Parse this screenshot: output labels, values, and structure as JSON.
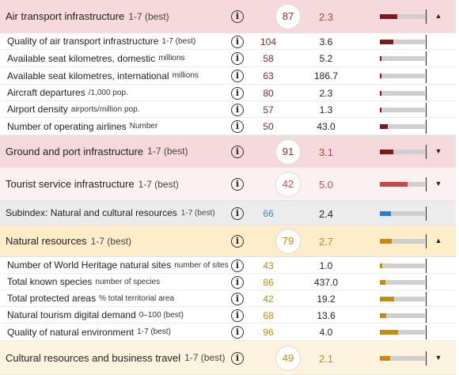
{
  "rows": [
    {
      "kind": "main",
      "label": "Air transport infrastructure",
      "unit": "1-7 (best)",
      "rank": "87",
      "score": "2.3",
      "bar": 0.38,
      "theme": "red",
      "toggle": "up-icon",
      "toggle_glyph": "▲",
      "bg": "#f6d9da",
      "rankColor": "#8b2d2d",
      "scoreColor": "#b0463e"
    },
    {
      "kind": "sub",
      "label": "Quality of air transport infrastructure",
      "unit": "1-7 (best)",
      "rank": "104",
      "score": "3.6",
      "bar": 0.3,
      "theme": "red",
      "bg": "#ffffff",
      "rankColor": "#7a2a2a",
      "scoreColor": "#222"
    },
    {
      "kind": "sub",
      "label": "Available seat kilometres, domestic",
      "unit": "millions",
      "rank": "58",
      "score": "5.2",
      "bar": 0.03,
      "theme": "red",
      "bg": "#ffffff",
      "rankColor": "#7a2a2a",
      "scoreColor": "#222"
    },
    {
      "kind": "sub",
      "label": "Available seat kilometres, international",
      "unit": "millions",
      "rank": "63",
      "score": "186.7",
      "bar": 0.02,
      "theme": "red",
      "bg": "#ffffff",
      "rankColor": "#7a2a2a",
      "scoreColor": "#222"
    },
    {
      "kind": "sub",
      "label": "Aircraft departures",
      "unit": "/1,000 pop.",
      "rank": "80",
      "score": "2.3",
      "bar": 0.02,
      "theme": "red",
      "bg": "#ffffff",
      "rankColor": "#7a2a2a",
      "scoreColor": "#222"
    },
    {
      "kind": "sub",
      "label": "Airport density",
      "unit": "airports/million pop.",
      "rank": "57",
      "score": "1.3",
      "bar": 0.02,
      "theme": "red",
      "bg": "#ffffff",
      "rankColor": "#7a2a2a",
      "scoreColor": "#222"
    },
    {
      "kind": "sub",
      "label": "Number of operating airlines",
      "unit": "Number",
      "rank": "50",
      "score": "43.0",
      "bar": 0.18,
      "theme": "red",
      "bg": "#ffffff",
      "rankColor": "#7a2a2a",
      "scoreColor": "#222"
    },
    {
      "kind": "main",
      "label": "Ground and port infrastructure",
      "unit": "1-7 (best)",
      "rank": "91",
      "score": "3.1",
      "bar": 0.3,
      "theme": "red",
      "toggle": "down-icon",
      "toggle_glyph": "▼",
      "bg": "#f6d9da",
      "rankColor": "#8b2d2d",
      "scoreColor": "#b0463e"
    },
    {
      "kind": "main",
      "label": "Tourist service infrastructure",
      "unit": "1-7 (best)",
      "rank": "42",
      "score": "5.0",
      "bar": 0.62,
      "theme": "red2",
      "toggle": "down-icon",
      "toggle_glyph": "▼",
      "bg": "#fbf1f1",
      "rankColor": "#c0504d",
      "scoreColor": "#c0504d"
    },
    {
      "kind": "main",
      "label": "Subindex: Natural and cultural resources",
      "unit": "1-7 (best)",
      "rank": "66",
      "score": "2.4",
      "bar": 0.24,
      "theme": "blue",
      "bg": "#ececec",
      "rankColor": "#3a86c6",
      "scoreColor": "#222",
      "small": true
    },
    {
      "kind": "main",
      "label": "Natural resources",
      "unit": "1-7 (best)",
      "rank": "79",
      "score": "2.7",
      "bar": 0.26,
      "theme": "gold",
      "toggle": "up-icon",
      "toggle_glyph": "▲",
      "bg": "#fdedc9",
      "rankColor": "#c48a13",
      "scoreColor": "#c48a13"
    },
    {
      "kind": "sub",
      "label": "Number of World Heritage natural sites",
      "unit": "number of sites",
      "rank": "43",
      "score": "1.0",
      "bar": 0.06,
      "theme": "gold",
      "bg": "#ffffff",
      "rankColor": "#c48a13",
      "scoreColor": "#222"
    },
    {
      "kind": "sub",
      "label": "Total known species",
      "unit": "number of species",
      "rank": "86",
      "score": "437.0",
      "bar": 0.12,
      "theme": "gold",
      "bg": "#ffffff",
      "rankColor": "#c48a13",
      "scoreColor": "#222"
    },
    {
      "kind": "sub",
      "label": "Total protected areas",
      "unit": "% total territorial area",
      "rank": "42",
      "score": "19.2",
      "bar": 0.32,
      "theme": "gold",
      "bg": "#ffffff",
      "rankColor": "#c48a13",
      "scoreColor": "#222",
      "prefix": true
    },
    {
      "kind": "sub",
      "label": "Natural tourism digital demand",
      "unit": "0–100 (best)",
      "rank": "68",
      "score": "13.6",
      "bar": 0.14,
      "theme": "gold",
      "bg": "#ffffff",
      "rankColor": "#c48a13",
      "scoreColor": "#222"
    },
    {
      "kind": "sub",
      "label": "Quality of natural environment",
      "unit": "1-7 (best)",
      "rank": "96",
      "score": "4.0",
      "bar": 0.4,
      "theme": "gold",
      "bg": "#ffffff",
      "rankColor": "#c48a13",
      "scoreColor": "#222"
    },
    {
      "kind": "main",
      "label": "Cultural resources and business travel",
      "unit": "1-7 (best)",
      "rank": "49",
      "score": "2.1",
      "bar": 0.22,
      "theme": "gold",
      "toggle": "down-icon",
      "toggle_glyph": "▼",
      "bg": "#fdf3de",
      "rankColor": "#c48a13",
      "scoreColor": "#c48a13"
    }
  ],
  "info_glyph": "i",
  "colors": {
    "red": "#7b1c1c",
    "red2": "#c9474a",
    "blue": "#2a7fd4",
    "gold": "#c48a13",
    "bar_bg": "#cfcfcf"
  }
}
